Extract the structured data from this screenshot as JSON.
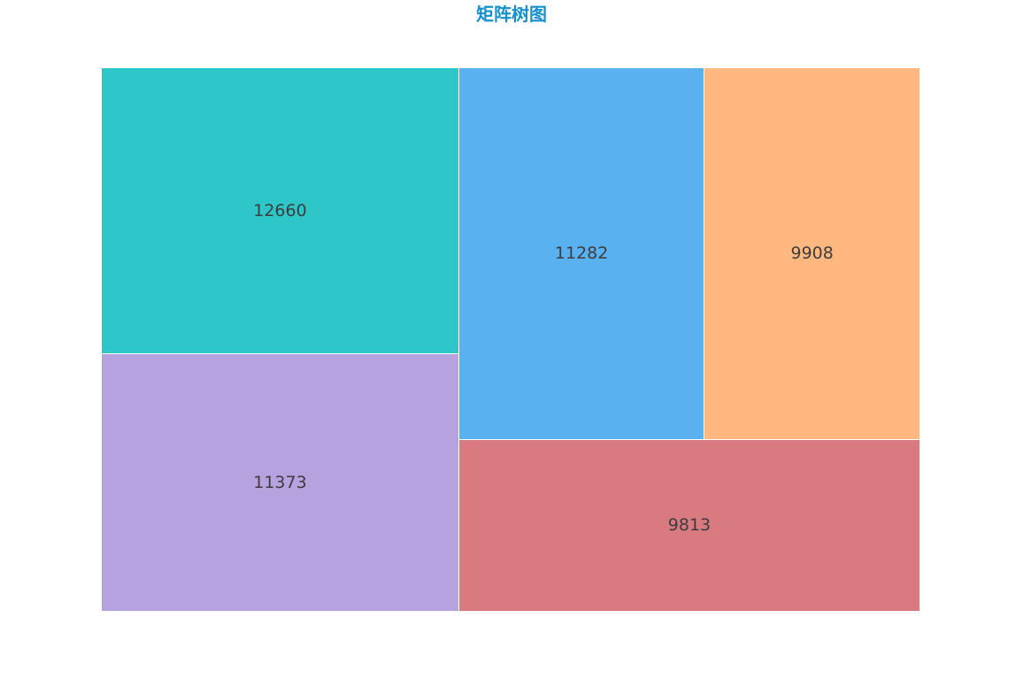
{
  "chart_data": {
    "type": "treemap",
    "title": "矩阵树图",
    "title_color": "#1590d0",
    "label_color": "#3d3d3d",
    "items": [
      {
        "value": 12660,
        "color": "#2ec7c9"
      },
      {
        "value": 11373,
        "color": "#b6a2de"
      },
      {
        "value": 11282,
        "color": "#5ab1ef"
      },
      {
        "value": 9908,
        "color": "#ffb980"
      },
      {
        "value": 9813,
        "color": "#d87a80"
      }
    ]
  }
}
